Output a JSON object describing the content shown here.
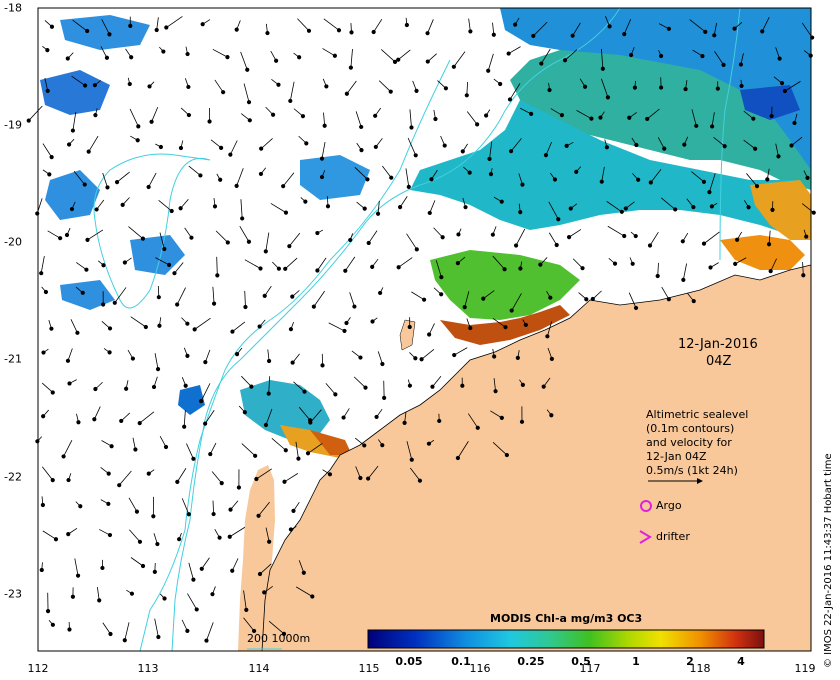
{
  "map": {
    "date_label": "12-Jan-2016",
    "time_label": "04Z",
    "lon_ticks": [
      "112",
      "113",
      "114",
      "115",
      "116",
      "117",
      "118",
      "119"
    ],
    "lat_ticks": [
      "-18",
      "-19",
      "-20",
      "-21",
      "-22",
      "-23"
    ],
    "legend": {
      "line1": "Altimetric sealevel",
      "line2": "(0.1m contours)",
      "line3": "and velocity for",
      "line4": "12-Jan 04Z",
      "line5": "0.5m/s (1kt 24h)",
      "argo_label": "Argo",
      "drifter_label": "drifter"
    },
    "bathy_label": "200  1000m",
    "colorbar": {
      "title": "MODIS Chl-a mg/m3 OC3",
      "ticks": [
        "0.05",
        "0.1",
        "0.25",
        "0.5",
        "1",
        "2",
        "4"
      ]
    },
    "credit": "© IMOS 22-Jan-2016 11:43:37 Hobart time",
    "colors": {
      "land": "#f8c89a",
      "contour": "#40d0e0",
      "argo": "#e020e0",
      "ocean": "#ffffff"
    }
  }
}
